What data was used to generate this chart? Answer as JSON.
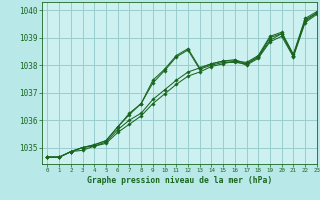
{
  "title": "Graphe pression niveau de la mer (hPa)",
  "bg_color": "#b8e8e8",
  "plot_bg_color": "#cdf0f0",
  "grid_color": "#99cccc",
  "line_color": "#1a6620",
  "marker_color": "#1a6620",
  "xlim": [
    -0.5,
    23
  ],
  "ylim": [
    1034.4,
    1040.3
  ],
  "yticks": [
    1035,
    1036,
    1037,
    1038,
    1039,
    1040
  ],
  "xticks": [
    0,
    1,
    2,
    3,
    4,
    5,
    6,
    7,
    8,
    9,
    10,
    11,
    12,
    13,
    14,
    15,
    16,
    17,
    18,
    19,
    20,
    21,
    22,
    23
  ],
  "series": [
    [
      1034.65,
      1034.65,
      1034.85,
      1034.9,
      1035.05,
      1035.15,
      1035.55,
      1035.85,
      1036.15,
      1036.6,
      1036.95,
      1037.3,
      1037.6,
      1037.75,
      1037.95,
      1038.05,
      1038.15,
      1038.0,
      1038.25,
      1038.85,
      1039.05,
      1038.3,
      1039.55,
      1039.85
    ],
    [
      1034.65,
      1034.65,
      1034.85,
      1035.0,
      1035.05,
      1035.2,
      1035.65,
      1036.0,
      1036.25,
      1036.75,
      1037.1,
      1037.45,
      1037.75,
      1037.9,
      1038.05,
      1038.15,
      1038.2,
      1038.05,
      1038.3,
      1038.9,
      1039.15,
      1038.35,
      1039.6,
      1039.9
    ],
    [
      1034.65,
      1034.65,
      1034.85,
      1035.0,
      1035.1,
      1035.25,
      1035.75,
      1036.2,
      1036.6,
      1037.35,
      1037.8,
      1038.3,
      1038.55,
      1037.85,
      1038.0,
      1038.1,
      1038.1,
      1038.05,
      1038.3,
      1039.0,
      1039.15,
      1038.35,
      1039.65,
      1039.9
    ],
    [
      1034.65,
      1034.65,
      1034.85,
      1035.0,
      1035.1,
      1035.25,
      1035.75,
      1036.25,
      1036.6,
      1037.45,
      1037.85,
      1038.35,
      1038.6,
      1037.9,
      1038.05,
      1038.15,
      1038.15,
      1038.1,
      1038.35,
      1039.05,
      1039.2,
      1038.4,
      1039.7,
      1039.95
    ]
  ]
}
